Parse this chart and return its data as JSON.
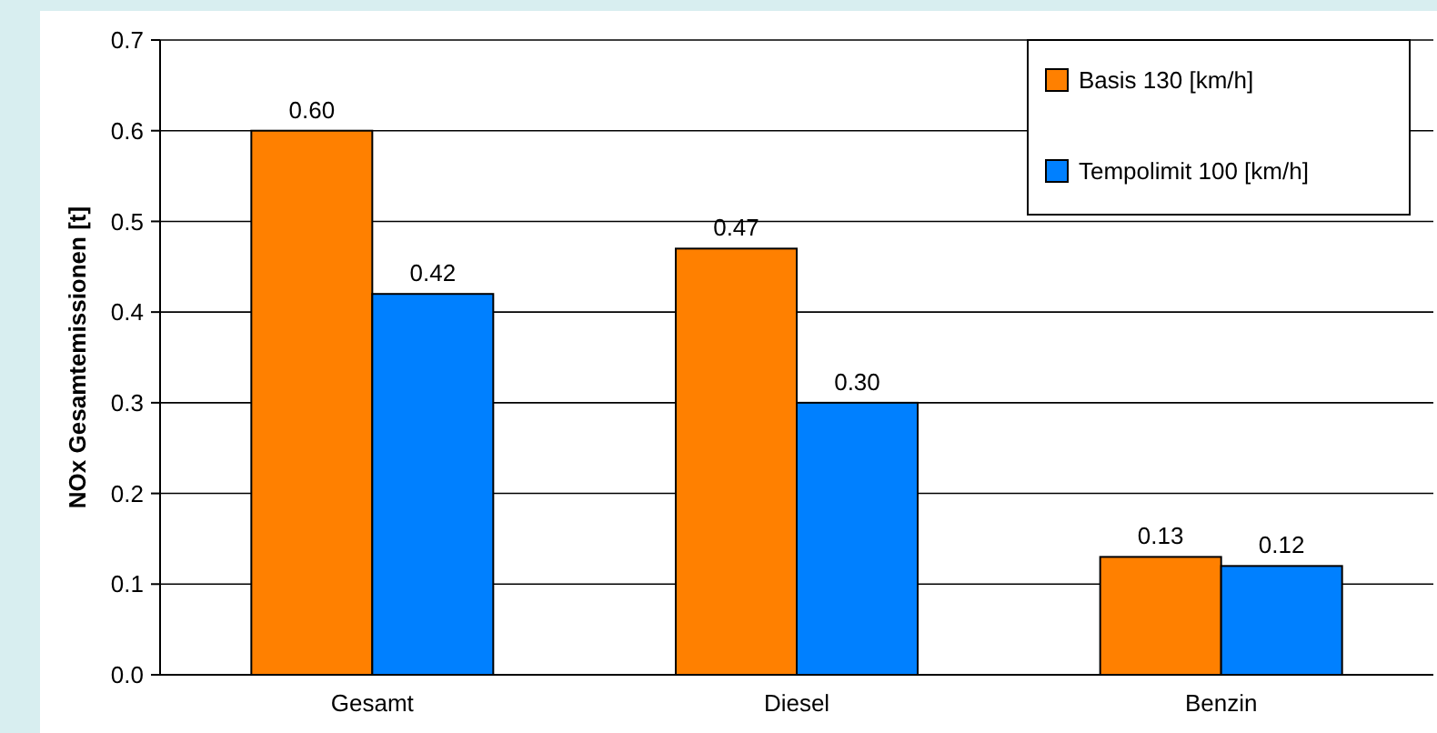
{
  "chart_data": {
    "type": "bar",
    "ylabel": "NOx Gesamtemissionen [t]",
    "categories": [
      "Gesamt",
      "Diesel",
      "Benzin"
    ],
    "series": [
      {
        "name": "Basis 130 [km/h]",
        "color": "#ff8000",
        "values": [
          0.6,
          0.47,
          0.13
        ],
        "value_labels": [
          "0.60",
          "0.47",
          "0.13"
        ]
      },
      {
        "name": "Tempolimit 100 [km/h]",
        "color": "#0080ff",
        "values": [
          0.42,
          0.3,
          0.12
        ],
        "value_labels": [
          "0.42",
          "0.30",
          "0.12"
        ]
      }
    ],
    "ylim": [
      0,
      0.7
    ],
    "yticks": [
      {
        "value": 0,
        "label": "0.0"
      },
      {
        "value": 0.1,
        "label": "0.1"
      },
      {
        "value": 0.2,
        "label": "0.2"
      },
      {
        "value": 0.3,
        "label": "0.3"
      },
      {
        "value": 0.4,
        "label": "0.4"
      },
      {
        "value": 0.5,
        "label": "0.5"
      },
      {
        "value": 0.6,
        "label": "0.6"
      },
      {
        "value": 0.7,
        "label": "0.7"
      }
    ],
    "grid": "y",
    "legend": "top right"
  }
}
